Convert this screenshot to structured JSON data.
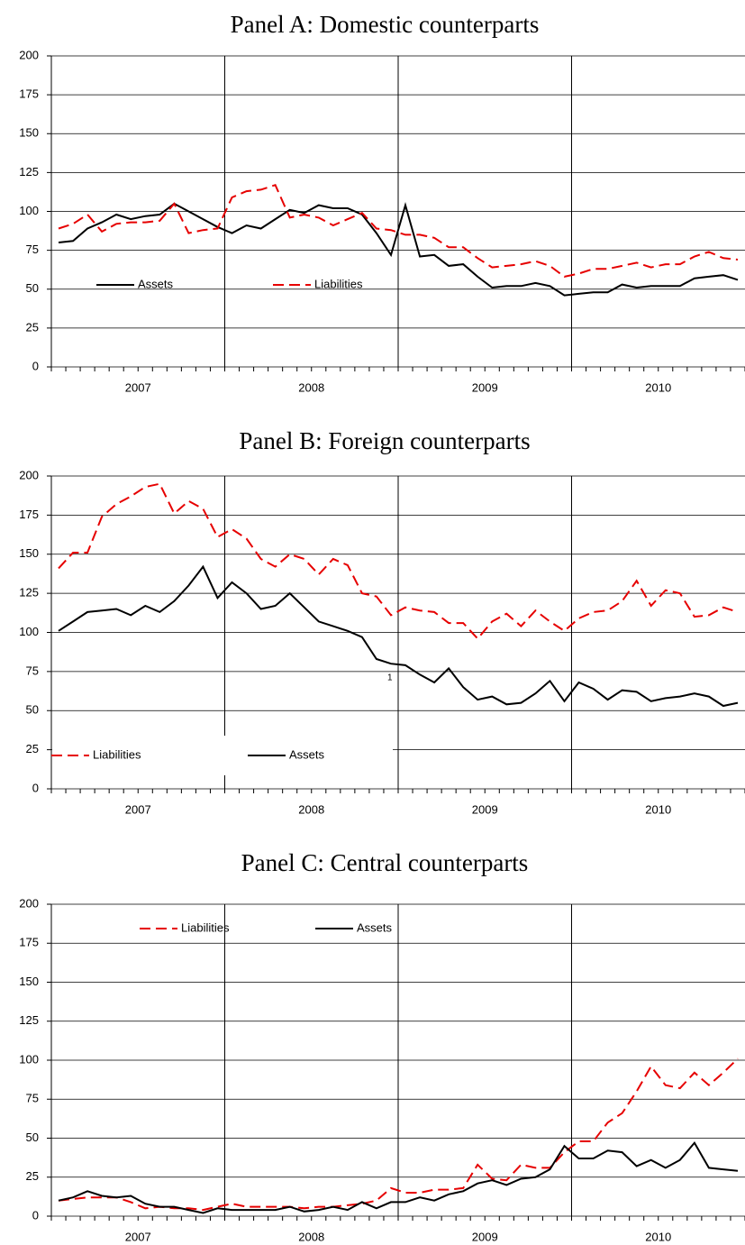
{
  "chart_data": [
    {
      "type": "line",
      "title": "Panel A: Domestic counterparts",
      "categories": [
        "2007",
        null,
        null,
        null,
        null,
        null,
        null,
        null,
        null,
        null,
        null,
        null,
        "2008",
        null,
        null,
        null,
        null,
        null,
        null,
        null,
        null,
        null,
        null,
        null,
        "2009",
        null,
        null,
        null,
        null,
        null,
        null,
        null,
        null,
        null,
        null,
        null,
        "2010",
        null,
        null,
        null,
        null,
        null,
        null,
        null,
        null,
        null,
        null,
        null
      ],
      "ylim": [
        0,
        200
      ],
      "yticks": [
        0,
        25,
        50,
        75,
        100,
        125,
        150,
        175,
        200
      ],
      "grid": true,
      "legend_position": "lower left",
      "series": [
        {
          "name": "Assets",
          "color": "#000000",
          "dashed": false,
          "values": [
            80,
            81,
            89,
            93,
            98,
            95,
            97,
            98,
            105,
            100,
            95,
            90,
            86,
            91,
            89,
            95,
            101,
            99,
            104,
            102,
            102,
            98,
            86,
            72,
            104,
            71,
            72,
            65,
            66,
            58,
            51,
            52,
            52,
            54,
            52,
            46,
            47,
            48,
            48,
            53,
            51,
            52,
            52,
            52,
            57,
            58,
            59,
            56
          ]
        },
        {
          "name": "Liabilities",
          "color": "#e60000",
          "dashed": true,
          "values": [
            89,
            92,
            98,
            87,
            92,
            93,
            93,
            94,
            105,
            86,
            88,
            89,
            109,
            113,
            114,
            117,
            96,
            98,
            96,
            91,
            95,
            99,
            89,
            88,
            85,
            85,
            83,
            77,
            77,
            70,
            64,
            65,
            66,
            68,
            65,
            58,
            60,
            63,
            63,
            65,
            67,
            64,
            66,
            66,
            71,
            74,
            70,
            69
          ]
        }
      ]
    },
    {
      "type": "line",
      "title": "Panel B: Foreign counterparts",
      "categories": [
        "2007",
        null,
        null,
        null,
        null,
        null,
        null,
        null,
        null,
        null,
        null,
        null,
        "2008",
        null,
        null,
        null,
        null,
        null,
        null,
        null,
        null,
        null,
        null,
        null,
        "2009",
        null,
        null,
        null,
        null,
        null,
        null,
        null,
        null,
        null,
        null,
        null,
        "2010",
        null,
        null,
        null,
        null,
        null,
        null,
        null,
        null,
        null,
        null,
        null
      ],
      "ylim": [
        0,
        200
      ],
      "yticks": [
        0,
        25,
        50,
        75,
        100,
        125,
        150,
        175,
        200
      ],
      "grid": true,
      "legend_position": "lower left",
      "annotations": [
        "1"
      ],
      "series": [
        {
          "name": "Liabilities",
          "color": "#e60000",
          "dashed": true,
          "values": [
            141,
            151,
            151,
            174,
            182,
            187,
            193,
            195,
            176,
            184,
            179,
            161,
            166,
            160,
            147,
            142,
            150,
            147,
            137,
            147,
            143,
            125,
            123,
            111,
            116,
            114,
            113,
            106,
            106,
            96,
            107,
            112,
            104,
            114,
            107,
            101,
            109,
            113,
            114,
            120,
            133,
            117,
            127,
            125,
            110,
            111,
            116,
            113
          ]
        },
        {
          "name": "Assets",
          "color": "#000000",
          "dashed": false,
          "values": [
            101,
            107,
            113,
            114,
            115,
            111,
            117,
            113,
            120,
            130,
            142,
            122,
            132,
            125,
            115,
            117,
            125,
            116,
            107,
            104,
            101,
            97,
            83,
            80,
            79,
            73,
            68,
            77,
            65,
            57,
            59,
            54,
            55,
            61,
            69,
            56,
            68,
            64,
            57,
            63,
            62,
            56,
            58,
            59,
            61,
            59,
            53,
            55
          ]
        }
      ]
    },
    {
      "type": "line",
      "title": "Panel C: Central counterparts",
      "categories": [
        "2007",
        null,
        null,
        null,
        null,
        null,
        null,
        null,
        null,
        null,
        null,
        null,
        "2008",
        null,
        null,
        null,
        null,
        null,
        null,
        null,
        null,
        null,
        null,
        null,
        "2009",
        null,
        null,
        null,
        null,
        null,
        null,
        null,
        null,
        null,
        null,
        null,
        "2010",
        null,
        null,
        null,
        null,
        null,
        null,
        null,
        null,
        null,
        null,
        null
      ],
      "ylim": [
        0,
        200
      ],
      "yticks": [
        0,
        25,
        50,
        75,
        100,
        125,
        150,
        175,
        200
      ],
      "grid": true,
      "legend_position": "upper left",
      "series": [
        {
          "name": "Liabilities",
          "color": "#e60000",
          "dashed": true,
          "values": [
            10,
            11,
            12,
            12,
            12,
            9,
            5,
            6,
            5,
            5,
            4,
            6,
            8,
            6,
            6,
            6,
            6,
            5,
            6,
            6,
            7,
            8,
            10,
            18,
            15,
            15,
            17,
            17,
            18,
            33,
            24,
            23,
            33,
            31,
            31,
            41,
            48,
            48,
            60,
            66,
            80,
            96,
            84,
            82,
            92,
            84,
            92,
            101
          ]
        },
        {
          "name": "Assets",
          "color": "#000000",
          "dashed": false,
          "values": [
            10,
            12,
            16,
            13,
            12,
            13,
            8,
            6,
            6,
            4,
            2,
            5,
            4,
            4,
            4,
            4,
            6,
            3,
            4,
            6,
            4,
            9,
            5,
            9,
            9,
            12,
            10,
            14,
            16,
            21,
            23,
            20,
            24,
            25,
            30,
            45,
            37,
            37,
            42,
            41,
            32,
            36,
            31,
            36,
            47,
            31,
            30,
            29
          ]
        }
      ]
    }
  ]
}
